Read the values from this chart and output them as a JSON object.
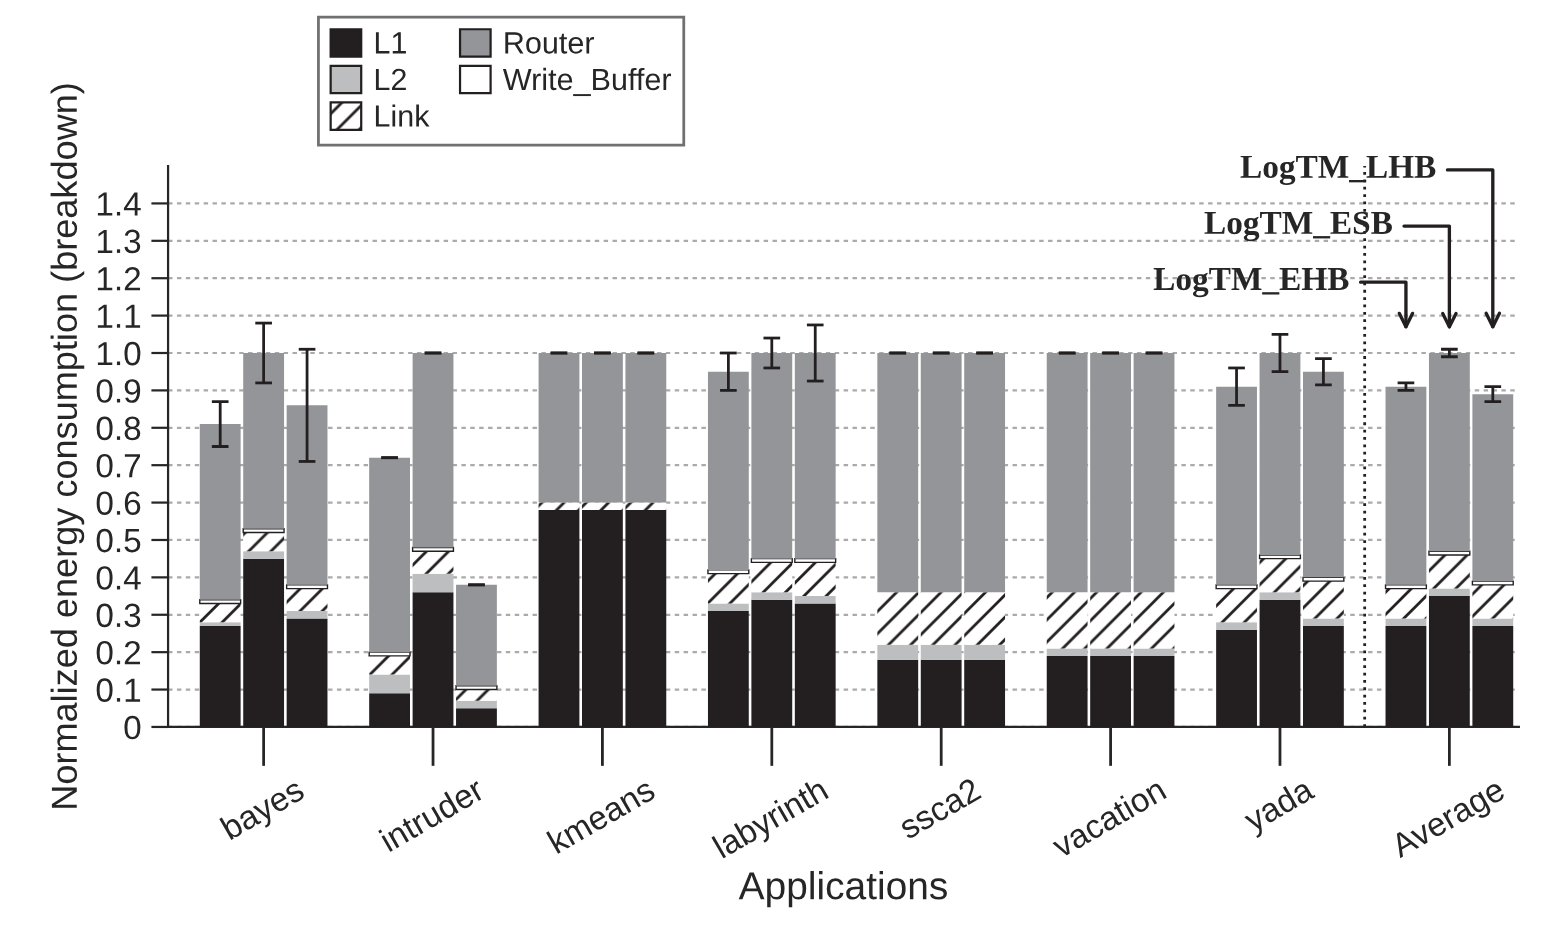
{
  "chart_data": {
    "type": "bar",
    "stacked": true,
    "xlabel": "Applications",
    "ylabel": "Normalized energy consumption (breakdown)",
    "categories": [
      null,
      "bayes",
      null,
      null,
      "intruder",
      null,
      null,
      "kmeans",
      null,
      null,
      "labyrinth",
      null,
      null,
      "ssca2",
      null,
      null,
      "vacation",
      null,
      null,
      "yada",
      null,
      null,
      "Average",
      null
    ],
    "series": [
      {
        "name": "L1",
        "color": "#231f20",
        "values": [
          0.27,
          0.45,
          0.29,
          0.09,
          0.36,
          0.05,
          0.58,
          0.58,
          0.58,
          0.31,
          0.34,
          0.33,
          0.18,
          0.18,
          0.18,
          0.19,
          0.19,
          0.19,
          0.26,
          0.34,
          0.27,
          0.27,
          0.35,
          0.27
        ]
      },
      {
        "name": "L2",
        "color": "#bcbec0",
        "values": [
          0.01,
          0.02,
          0.02,
          0.05,
          0.05,
          0.02,
          0,
          0,
          0,
          0.02,
          0.02,
          0.02,
          0.04,
          0.04,
          0.04,
          0.02,
          0.02,
          0.02,
          0.02,
          0.02,
          0.02,
          0.02,
          0.02,
          0.02
        ]
      },
      {
        "name": "Link",
        "color": "#ffffff",
        "values": [
          0.05,
          0.05,
          0.06,
          0.05,
          0.06,
          0.03,
          0.02,
          0.02,
          0.02,
          0.08,
          0.08,
          0.09,
          0.14,
          0.14,
          0.14,
          0.15,
          0.15,
          0.15,
          0.09,
          0.09,
          0.1,
          0.08,
          0.09,
          0.09
        ]
      },
      {
        "name": "Write_Buffer",
        "color": "#ffffff",
        "values": [
          0.01,
          0.01,
          0.01,
          0.01,
          0.01,
          0.01,
          0,
          0,
          0,
          0.01,
          0.01,
          0.01,
          0,
          0,
          0,
          0,
          0,
          0,
          0.01,
          0.01,
          0.01,
          0.01,
          0.01,
          0.01
        ]
      },
      {
        "name": "Router",
        "color": "#939598",
        "values": [
          0.47,
          0.47,
          0.48,
          0.52,
          0.52,
          0.27,
          0.4,
          0.4,
          0.4,
          0.53,
          0.55,
          0.55,
          0.64,
          0.64,
          0.64,
          0.64,
          0.64,
          0.64,
          0.53,
          0.54,
          0.55,
          0.53,
          0.53,
          0.5
        ],
        "errors": [
          0.06,
          0.08,
          0.15,
          0,
          0,
          0,
          0,
          0,
          0,
          0.05,
          0.04,
          0.075,
          0,
          0,
          0,
          0,
          0,
          0,
          0.05,
          0.05,
          0.035,
          0.01,
          0.01,
          0.02
        ]
      }
    ],
    "ylim": [
      0,
      1.5
    ],
    "yticks": [
      0,
      0.1,
      0.2,
      0.3,
      0.4,
      0.5,
      0.6,
      0.7,
      0.8,
      0.9,
      {
        "value": 1,
        "label": "1.0"
      },
      1.1,
      1.2,
      1.3,
      1.4
    ],
    "grid": "y",
    "legend": "top left",
    "annotations": [
      "LogTM_EHB",
      "LogTM_ESB",
      "LogTM_LHB"
    ]
  }
}
